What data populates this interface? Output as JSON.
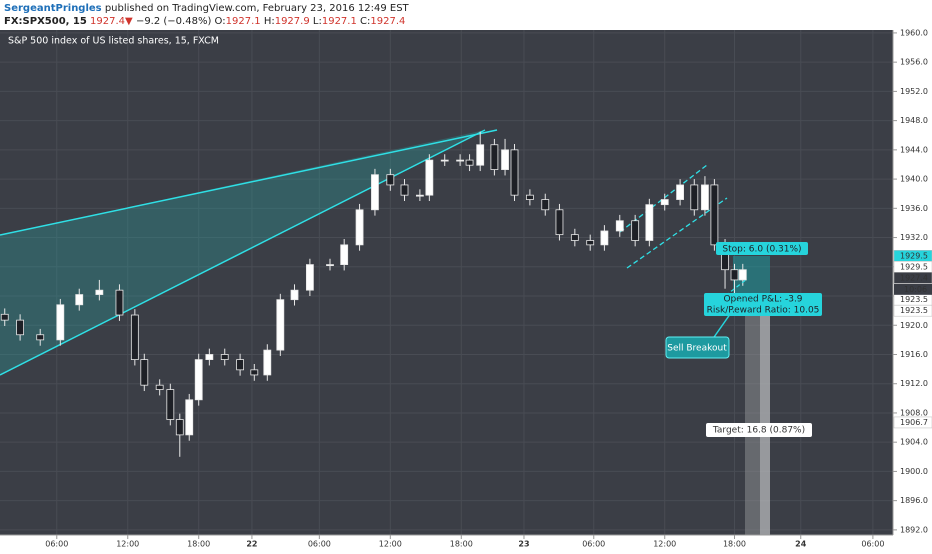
{
  "header": {
    "author": "SergeantPringles",
    "published": "published on TradingView.com, February 23, 2016 12:49 EST",
    "symbol": "FX:SPX500, 15",
    "last": "1927.4",
    "arrow": "▼",
    "change": "−9.2 (−0.48%)",
    "o_label": "O:",
    "o": "1927.1",
    "h_label": "H:",
    "h": "1927.9",
    "l_label": "L:",
    "l": "1927.1",
    "c_label": "C:",
    "c": "1927.4"
  },
  "chart_data": {
    "type": "candlestick",
    "title": "S&P 500 index of US listed shares, 15, FXCM",
    "up_color": "#ffffff",
    "down_color": "#1e2026",
    "wick_color": "#e8e8e8",
    "grid": true,
    "xlim": [
      1.2,
      76.7
    ],
    "ylim": [
      1891.3,
      1960.4
    ],
    "xticks": [
      {
        "value": 6,
        "label": "06:00"
      },
      {
        "value": 12,
        "label": "12:00"
      },
      {
        "value": 18,
        "label": "18:00"
      },
      {
        "value": 22.5,
        "label": "22"
      },
      {
        "value": 28.2,
        "label": "06:00"
      },
      {
        "value": 34.2,
        "label": "12:00"
      },
      {
        "value": 40.2,
        "label": "18:00"
      },
      {
        "value": 45.5,
        "label": "23"
      },
      {
        "value": 51.4,
        "label": "06:00"
      },
      {
        "value": 57.4,
        "label": "12:00"
      },
      {
        "value": 63.3,
        "label": "18:00"
      },
      {
        "value": 68.9,
        "label": "24"
      },
      {
        "value": 75.0,
        "label": "06:00"
      }
    ],
    "yticks": [
      {
        "value": 1892,
        "label": "1892.0"
      },
      {
        "value": 1896,
        "label": "1896.0"
      },
      {
        "value": 1900,
        "label": "1900.0"
      },
      {
        "value": 1904,
        "label": "1904.0"
      },
      {
        "value": 1908,
        "label": "1908.0"
      },
      {
        "value": 1912,
        "label": "1912.0"
      },
      {
        "value": 1916,
        "label": "1916.0"
      },
      {
        "value": 1920,
        "label": "1920.0"
      },
      {
        "value": 1924,
        "label": "1924.0"
      },
      {
        "value": 1928,
        "label": "1928.0"
      },
      {
        "value": 1932,
        "label": "1932.0"
      },
      {
        "value": 1936,
        "label": "1936.0"
      },
      {
        "value": 1940,
        "label": "1940.0"
      },
      {
        "value": 1944,
        "label": "1944.0"
      },
      {
        "value": 1948,
        "label": "1948.0"
      },
      {
        "value": 1952,
        "label": "1952.0"
      },
      {
        "value": 1956,
        "label": "1956.0"
      },
      {
        "value": 1960,
        "label": "1960.0"
      }
    ],
    "x": [
      1.6,
      2.9,
      4.6,
      6.3,
      7.9,
      9.6,
      11.3,
      12.6,
      13.4,
      14.7,
      15.6,
      16.4,
      17.2,
      18.0,
      18.9,
      20.2,
      21.5,
      22.7,
      23.8,
      24.9,
      26.1,
      27.4,
      29.1,
      30.3,
      31.6,
      32.9,
      34.2,
      35.4,
      36.7,
      37.5,
      38.8,
      40.1,
      40.9,
      41.8,
      43.0,
      43.9,
      44.7,
      46.0,
      47.3,
      48.5,
      49.8,
      51.1,
      52.3,
      53.6,
      54.9,
      56.1,
      57.4,
      58.7,
      59.9,
      60.8,
      61.6,
      62.5,
      63.3,
      64.0
    ],
    "open": [
      1921.5,
      1920.7,
      1918.7,
      1918.0,
      1922.8,
      1924.2,
      1924.8,
      1921.4,
      1915.3,
      1911.8,
      1911.2,
      1907.1,
      1905.0,
      1909.8,
      1915.3,
      1916.0,
      1915.3,
      1913.9,
      1913.2,
      1916.6,
      1923.5,
      1924.8,
      1928.3,
      1928.3,
      1931.0,
      1935.8,
      1940.6,
      1939.2,
      1937.8,
      1937.8,
      1942.6,
      1942.6,
      1942.6,
      1941.9,
      1944.7,
      1941.3,
      1944.0,
      1937.8,
      1937.2,
      1935.8,
      1932.4,
      1931.6,
      1931.0,
      1932.9,
      1934.3,
      1931.6,
      1936.5,
      1937.2,
      1939.2,
      1935.8,
      1939.2,
      1931.0,
      1927.6,
      1926.2
    ],
    "high": [
      1922.3,
      1921.5,
      1919.5,
      1923.6,
      1925.0,
      1926.2,
      1925.6,
      1922.2,
      1916.1,
      1912.6,
      1912.0,
      1907.9,
      1910.6,
      1916.1,
      1916.8,
      1916.8,
      1916.1,
      1914.7,
      1917.4,
      1924.3,
      1925.6,
      1929.1,
      1929.1,
      1931.8,
      1936.6,
      1941.4,
      1941.4,
      1940.0,
      1938.6,
      1943.4,
      1943.4,
      1943.4,
      1943.4,
      1946.5,
      1945.5,
      1945.5,
      1944.8,
      1938.6,
      1938.0,
      1936.6,
      1933.2,
      1932.4,
      1933.7,
      1935.1,
      1935.1,
      1937.3,
      1938.0,
      1940.0,
      1940.0,
      1940.4,
      1940.0,
      1931.8,
      1928.4,
      1928.4
    ],
    "low": [
      1919.9,
      1917.9,
      1917.2,
      1917.2,
      1922.0,
      1923.4,
      1920.6,
      1914.5,
      1911.0,
      1910.4,
      1906.3,
      1902.0,
      1904.2,
      1909.0,
      1914.5,
      1914.5,
      1913.1,
      1912.4,
      1912.4,
      1915.8,
      1922.7,
      1924.0,
      1927.5,
      1927.5,
      1930.2,
      1935.0,
      1938.4,
      1937.0,
      1937.0,
      1937.0,
      1941.8,
      1941.8,
      1941.1,
      1941.1,
      1940.5,
      1940.5,
      1937.0,
      1936.4,
      1935.0,
      1931.6,
      1930.8,
      1930.2,
      1930.2,
      1932.1,
      1930.8,
      1930.8,
      1935.7,
      1936.4,
      1935.0,
      1935.0,
      1930.2,
      1925.0,
      1923.5,
      1925.4
    ],
    "close": [
      1920.7,
      1918.7,
      1918.0,
      1922.8,
      1924.2,
      1924.8,
      1921.4,
      1915.3,
      1911.8,
      1911.2,
      1907.1,
      1905.0,
      1909.8,
      1915.3,
      1916.0,
      1915.3,
      1913.9,
      1913.2,
      1916.6,
      1923.5,
      1924.8,
      1928.3,
      1928.3,
      1931.0,
      1935.8,
      1940.6,
      1939.2,
      1937.8,
      1937.8,
      1942.6,
      1942.6,
      1942.6,
      1941.9,
      1944.7,
      1941.3,
      1944.0,
      1937.8,
      1937.2,
      1935.8,
      1932.4,
      1931.6,
      1931.0,
      1932.9,
      1934.3,
      1931.6,
      1936.5,
      1937.2,
      1939.2,
      1935.8,
      1939.2,
      1931.0,
      1927.6,
      1926.2,
      1927.6
    ],
    "price_markers": [
      {
        "value": 1929.5,
        "bg": "#26d4dc",
        "fg": "#1e2026"
      },
      {
        "value": 1929.5,
        "bg": "#ffffff",
        "fg": "#333333"
      },
      {
        "value": 1927.4,
        "bg": "#3a3d45",
        "fg": "#ffffff"
      },
      {
        "value": 1923.5,
        "bg": "#ffffff",
        "fg": "#333333"
      },
      {
        "value": 1923.5,
        "bg": "#ffffff",
        "fg": "#333333"
      },
      {
        "value": 1906.7,
        "bg": "#ffffff",
        "fg": "#333333"
      }
    ],
    "countdown": "10:06",
    "annotations": {
      "stop": "Stop: 6.0 (0.31%)",
      "pnl": "Opened P&L: -3.9",
      "ratio": "Risk/Reward Ratio: 10.05",
      "sell": "Sell Breakout",
      "target": "Target: 16.8 (0.87%)"
    }
  }
}
